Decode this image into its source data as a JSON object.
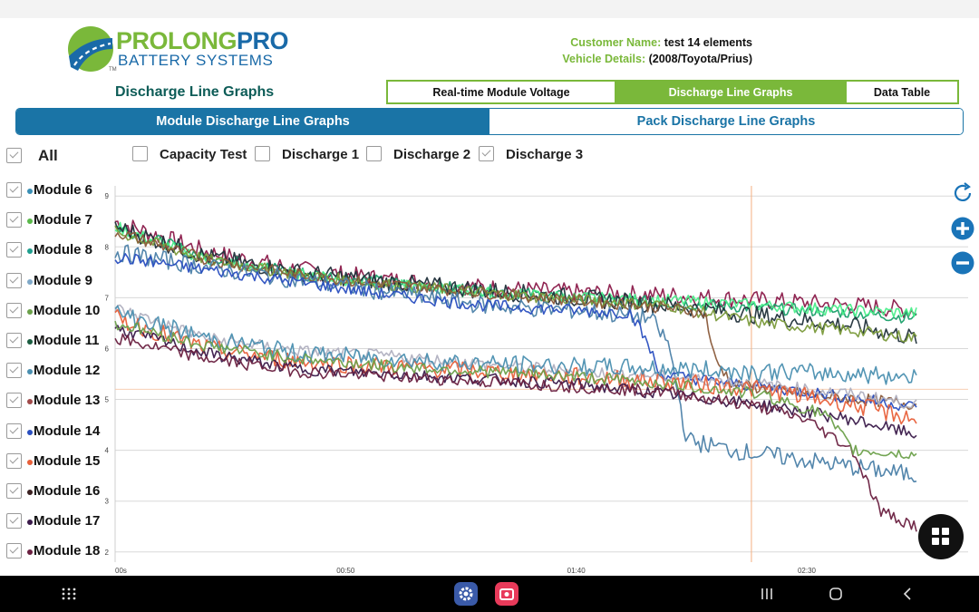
{
  "logo": {
    "word1": "PROLONG",
    "word2": "PRO",
    "sub": "BATTERY SYSTEMS",
    "tm": "TM"
  },
  "customer": {
    "name_label": "Customer Name:",
    "name_value": "test 14 elements",
    "vehicle_label": "Vehicle Details:",
    "vehicle_value": "(2008/Toyota/Prius)"
  },
  "page_title": "Discharge Line Graphs",
  "tabs": [
    {
      "label": "Real-time Module Voltage",
      "active": false
    },
    {
      "label": "Discharge Line Graphs",
      "active": true
    },
    {
      "label": "Data Table",
      "active": false
    }
  ],
  "segments": {
    "left": "Module Discharge Line Graphs",
    "right": "Pack Discharge Line Graphs",
    "selected": "left"
  },
  "filters": [
    {
      "label": "All",
      "checked": true
    },
    {
      "label": "Capacity Test",
      "checked": false
    },
    {
      "label": "Discharge 1",
      "checked": false
    },
    {
      "label": "Discharge 2",
      "checked": false
    },
    {
      "label": "Discharge 3",
      "checked": true
    }
  ],
  "modules": [
    {
      "label": "Module 6",
      "color": "#3a8fb5",
      "checked": true
    },
    {
      "label": "Module 7",
      "color": "#5ab84a",
      "checked": true
    },
    {
      "label": "Module 8",
      "color": "#1f9e8e",
      "checked": true
    },
    {
      "label": "Module 9",
      "color": "#7fa8c8",
      "checked": true
    },
    {
      "label": "Module 10",
      "color": "#6ba04a",
      "checked": true
    },
    {
      "label": "Module 11",
      "color": "#1a5c40",
      "checked": true
    },
    {
      "label": "Module 12",
      "color": "#4a8fb0",
      "checked": true
    },
    {
      "label": "Module 13",
      "color": "#a04a4a",
      "checked": true
    },
    {
      "label": "Module 14",
      "color": "#2a4fc0",
      "checked": true
    },
    {
      "label": "Module 15",
      "color": "#e8603a",
      "checked": true
    },
    {
      "label": "Module 16",
      "color": "#3a2020",
      "checked": true
    },
    {
      "label": "Module 17",
      "color": "#3a1a4a",
      "checked": true
    },
    {
      "label": "Module 18",
      "color": "#6a2040",
      "checked": true
    }
  ],
  "chart_data": {
    "type": "line",
    "ylim": [
      1.8,
      9.2
    ],
    "xlim": [
      0,
      185
    ],
    "x_ticks": [
      {
        "value": 0,
        "label": "00s"
      },
      {
        "value": 50,
        "label": "00:50"
      },
      {
        "value": 100,
        "label": "01:40"
      },
      {
        "value": 150,
        "label": "02:30"
      }
    ],
    "y_ticks": [
      2,
      3,
      4,
      5,
      6,
      7,
      8,
      9
    ],
    "grid": true,
    "crosshair": {
      "x": 138,
      "y": 5.2
    },
    "series": [
      {
        "color": "#8b1a4a",
        "values": [
          [
            0,
            8.5
          ],
          [
            20,
            7.9
          ],
          [
            40,
            7.55
          ],
          [
            60,
            7.35
          ],
          [
            80,
            7.2
          ],
          [
            100,
            7.1
          ],
          [
            120,
            7.05
          ],
          [
            140,
            6.95
          ],
          [
            160,
            6.85
          ],
          [
            174,
            6.75
          ]
        ]
      },
      {
        "color": "#1aa06a",
        "values": [
          [
            0,
            8.4
          ],
          [
            20,
            7.8
          ],
          [
            40,
            7.5
          ],
          [
            60,
            7.3
          ],
          [
            80,
            7.15
          ],
          [
            100,
            7.0
          ],
          [
            120,
            6.9
          ],
          [
            140,
            6.8
          ],
          [
            160,
            6.7
          ],
          [
            174,
            6.6
          ]
        ]
      },
      {
        "color": "#4aee8a",
        "values": [
          [
            0,
            8.4
          ],
          [
            20,
            7.75
          ],
          [
            40,
            7.45
          ],
          [
            60,
            7.25
          ],
          [
            80,
            7.1
          ],
          [
            100,
            7.0
          ],
          [
            120,
            6.95
          ],
          [
            140,
            6.85
          ],
          [
            160,
            6.75
          ],
          [
            174,
            6.7
          ]
        ]
      },
      {
        "color": "#20303a",
        "values": [
          [
            0,
            8.4
          ],
          [
            20,
            7.8
          ],
          [
            40,
            7.5
          ],
          [
            60,
            7.3
          ],
          [
            80,
            7.15
          ],
          [
            100,
            7.0
          ],
          [
            120,
            6.85
          ],
          [
            140,
            6.65
          ],
          [
            160,
            6.45
          ],
          [
            174,
            6.2
          ]
        ]
      },
      {
        "color": "#7a9a3a",
        "values": [
          [
            0,
            8.3
          ],
          [
            20,
            7.75
          ],
          [
            40,
            7.45
          ],
          [
            60,
            7.25
          ],
          [
            80,
            7.1
          ],
          [
            100,
            6.95
          ],
          [
            120,
            6.85
          ],
          [
            128,
            6.7
          ],
          [
            140,
            6.5
          ],
          [
            160,
            6.35
          ],
          [
            174,
            6.2
          ]
        ]
      },
      {
        "color": "#8a5a3a",
        "values": [
          [
            0,
            8.3
          ],
          [
            20,
            7.75
          ],
          [
            40,
            7.45
          ],
          [
            60,
            7.25
          ],
          [
            80,
            7.1
          ],
          [
            100,
            6.95
          ],
          [
            120,
            6.8
          ],
          [
            128,
            6.7
          ],
          [
            130,
            5.8
          ],
          [
            134,
            5.3
          ],
          [
            150,
            5.1
          ],
          [
            174,
            4.9
          ]
        ]
      },
      {
        "color": "#4a7fa8",
        "values": [
          [
            0,
            7.9
          ],
          [
            20,
            7.6
          ],
          [
            40,
            7.35
          ],
          [
            60,
            7.1
          ],
          [
            80,
            6.85
          ],
          [
            100,
            6.75
          ],
          [
            116,
            6.6
          ],
          [
            120,
            6.1
          ],
          [
            124,
            4.2
          ],
          [
            134,
            4.0
          ],
          [
            150,
            3.8
          ],
          [
            174,
            3.5
          ]
        ]
      },
      {
        "color": "#2a4fc0",
        "values": [
          [
            0,
            7.8
          ],
          [
            20,
            7.55
          ],
          [
            40,
            7.3
          ],
          [
            60,
            7.05
          ],
          [
            80,
            6.85
          ],
          [
            100,
            6.75
          ],
          [
            112,
            6.7
          ],
          [
            116,
            6.0
          ],
          [
            118,
            5.5
          ],
          [
            130,
            5.35
          ],
          [
            150,
            5.15
          ],
          [
            174,
            4.85
          ]
        ]
      },
      {
        "color": "#b0b0c0",
        "values": [
          [
            0,
            6.8
          ],
          [
            20,
            6.2
          ],
          [
            40,
            5.95
          ],
          [
            60,
            5.85
          ],
          [
            80,
            5.7
          ],
          [
            100,
            5.55
          ],
          [
            120,
            5.45
          ],
          [
            140,
            5.3
          ],
          [
            160,
            5.1
          ],
          [
            174,
            4.9
          ]
        ]
      },
      {
        "color": "#e8603a",
        "values": [
          [
            0,
            6.6
          ],
          [
            20,
            6.0
          ],
          [
            40,
            5.75
          ],
          [
            60,
            5.65
          ],
          [
            80,
            5.55
          ],
          [
            100,
            5.45
          ],
          [
            120,
            5.35
          ],
          [
            140,
            5.2
          ],
          [
            160,
            4.9
          ],
          [
            174,
            4.6
          ]
        ]
      },
      {
        "color": "#3a1a4a",
        "values": [
          [
            0,
            6.4
          ],
          [
            20,
            5.9
          ],
          [
            40,
            5.6
          ],
          [
            60,
            5.5
          ],
          [
            80,
            5.4
          ],
          [
            100,
            5.3
          ],
          [
            120,
            5.1
          ],
          [
            140,
            4.9
          ],
          [
            160,
            4.6
          ],
          [
            174,
            4.3
          ]
        ]
      },
      {
        "color": "#6a2040",
        "values": [
          [
            0,
            6.2
          ],
          [
            20,
            5.8
          ],
          [
            40,
            5.55
          ],
          [
            60,
            5.45
          ],
          [
            80,
            5.35
          ],
          [
            100,
            5.25
          ],
          [
            120,
            5.15
          ],
          [
            140,
            4.85
          ],
          [
            150,
            4.6
          ],
          [
            160,
            4.0
          ],
          [
            166,
            2.8
          ],
          [
            174,
            2.5
          ]
        ]
      },
      {
        "color": "#4a8fb0",
        "values": [
          [
            0,
            6.7
          ],
          [
            20,
            6.2
          ],
          [
            40,
            5.9
          ],
          [
            60,
            5.8
          ],
          [
            80,
            5.7
          ],
          [
            100,
            5.65
          ],
          [
            120,
            5.6
          ],
          [
            140,
            5.55
          ],
          [
            160,
            5.5
          ],
          [
            174,
            5.45
          ]
        ]
      },
      {
        "color": "#6ba04a",
        "values": [
          [
            0,
            6.5
          ],
          [
            20,
            6.05
          ],
          [
            40,
            5.8
          ],
          [
            60,
            5.65
          ],
          [
            80,
            5.55
          ],
          [
            100,
            5.45
          ],
          [
            120,
            5.3
          ],
          [
            140,
            5.1
          ],
          [
            154,
            4.7
          ],
          [
            160,
            4.0
          ],
          [
            174,
            3.9
          ]
        ]
      }
    ]
  },
  "chart_controls": {
    "reset": "refresh-icon",
    "zoom_in": "plus-icon",
    "zoom_out": "minus-icon"
  }
}
